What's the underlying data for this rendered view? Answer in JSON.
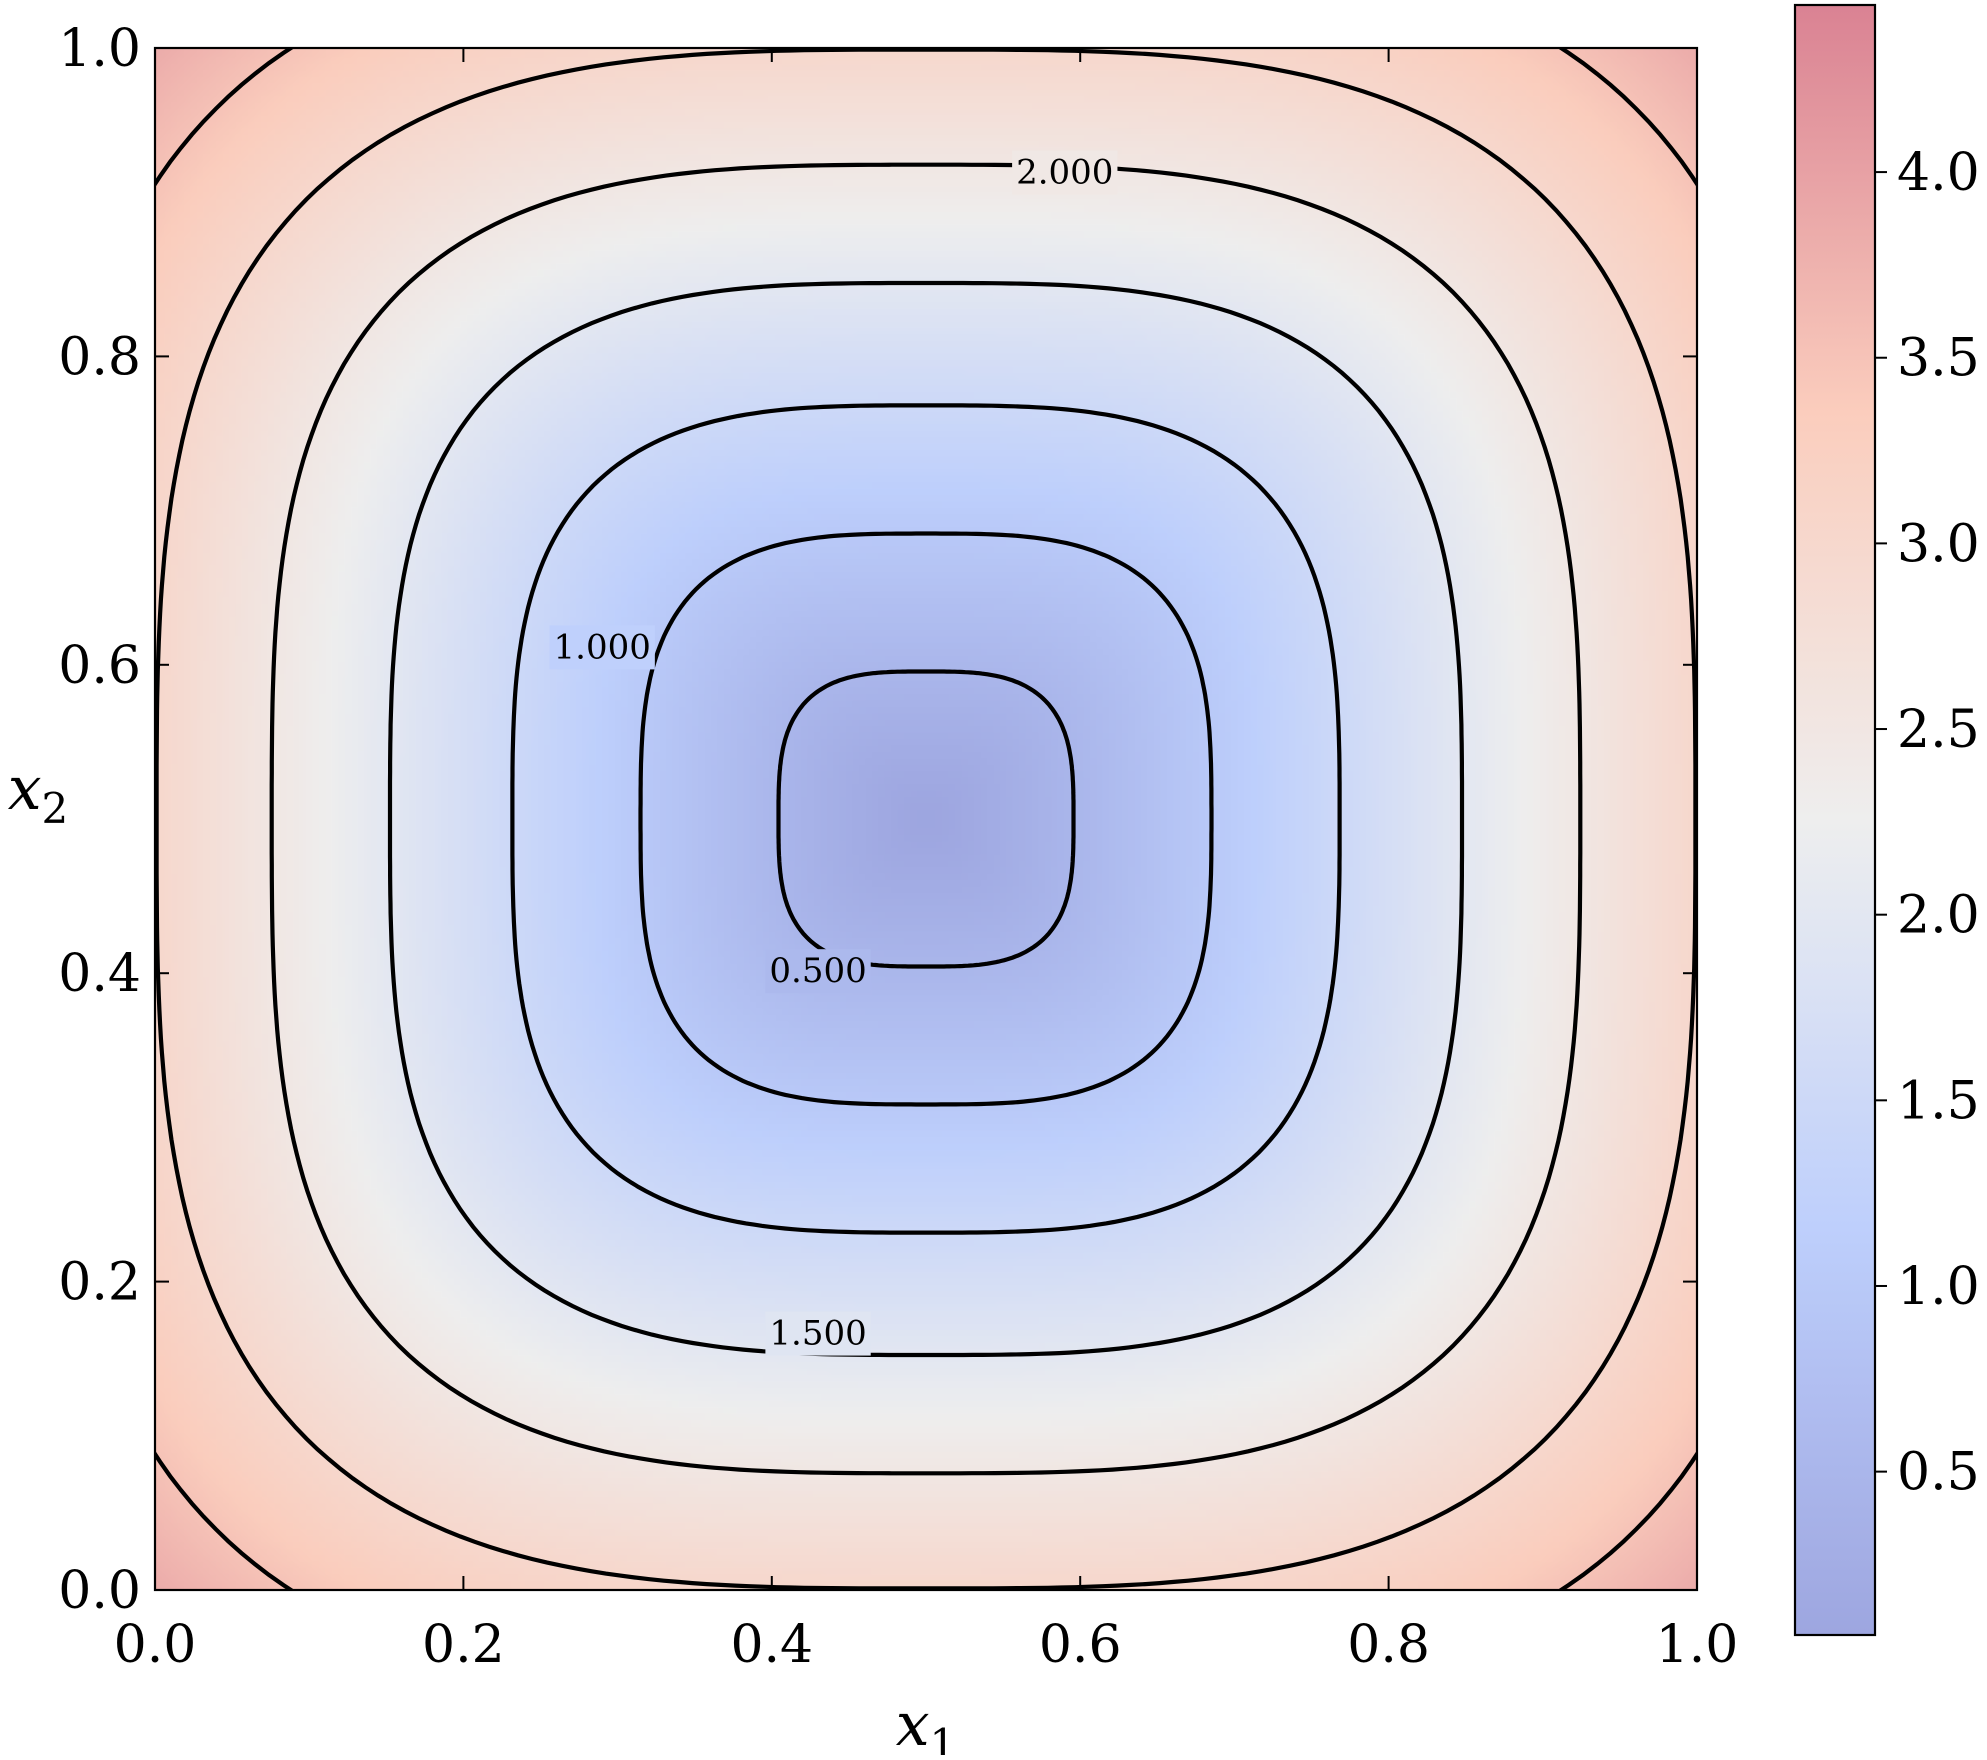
{
  "chart_data": {
    "type": "contour",
    "xlabel": "x",
    "xlabel_sub": "1",
    "ylabel": "x",
    "ylabel_sub": "2",
    "xlim": [
      0.0,
      1.0
    ],
    "ylim": [
      0.0,
      1.0
    ],
    "xticks": [
      0.0,
      0.2,
      0.4,
      0.6,
      0.8,
      1.0
    ],
    "yticks": [
      0.0,
      0.2,
      0.4,
      0.6,
      0.8,
      1.0
    ],
    "xtick_labels": [
      "0.0",
      "0.2",
      "0.4",
      "0.6",
      "0.8",
      "1.0"
    ],
    "ytick_labels": [
      "0.0",
      "0.2",
      "0.4",
      "0.6",
      "0.8",
      "1.0"
    ],
    "field_min": 0.06,
    "field_max": 4.45,
    "field_center": [
      0.5,
      0.5
    ],
    "contour_levels": [
      0.5,
      1.0,
      1.5,
      2.0,
      2.5,
      3.0,
      3.5
    ],
    "contour_labels": [
      {
        "text": "0.500",
        "x": 0.43,
        "y": 0.4
      },
      {
        "text": "1.000",
        "x": 0.29,
        "y": 0.61
      },
      {
        "text": "1.500",
        "x": 0.43,
        "y": 0.165
      },
      {
        "text": "2.000",
        "x": 0.59,
        "y": 0.918
      }
    ],
    "colormap": "coolwarm",
    "colormap_alpha": 0.5,
    "colorbar": {
      "range": [
        0.06,
        4.45
      ],
      "ticks": [
        0.5,
        1.0,
        1.5,
        2.0,
        2.5,
        3.0,
        3.5,
        4.0
      ],
      "tick_labels": [
        "0.5",
        "1.0",
        "1.5",
        "2.0",
        "2.5",
        "3.0",
        "3.5",
        "4.0"
      ]
    },
    "grid": false,
    "legend": "none"
  }
}
